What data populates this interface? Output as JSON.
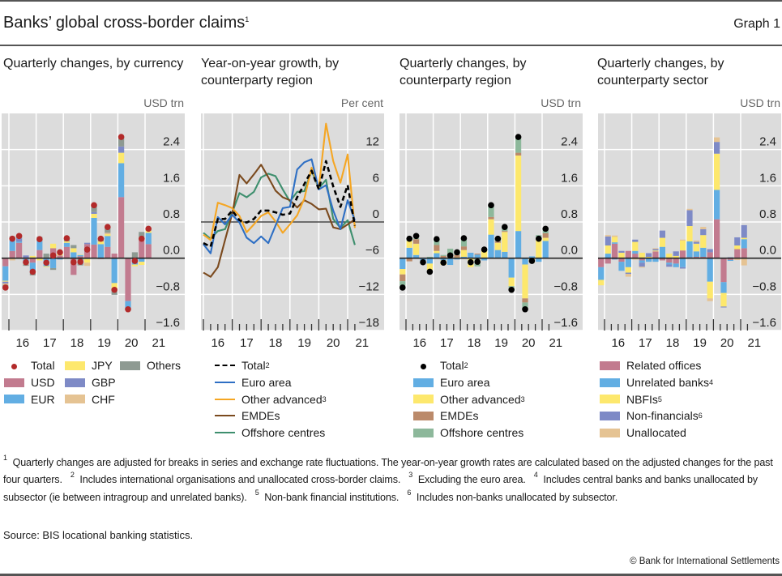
{
  "header": {
    "title": "Banks’ global cross-border claims",
    "title_sup": "1",
    "graph_label": "Graph 1"
  },
  "colors": {
    "plot_bg": "#dcdcdc",
    "grid": "#ffffff",
    "usd": "#c27b8f",
    "eur": "#62aee3",
    "jpy": "#fde86d",
    "gbp": "#7e8ac6",
    "chf": "#e5c393",
    "others": "#8e9a92",
    "total_dot": "#b22a2a",
    "total_black": "#000000",
    "euro_line": "#2e6fc4",
    "oadv_line": "#f5a623",
    "emde_line": "#7b4a1e",
    "offshore_line": "#3e8f6e",
    "emde_bar": "#bb8a6a",
    "offshore_bar": "#8db89b",
    "related": "#c27b8f",
    "unrelated": "#62aee3",
    "nbfi": "#fde86d",
    "nonfin": "#7e8ac6",
    "unalloc": "#e5c393"
  },
  "chart_data": [
    {
      "type": "bar",
      "stacked": true,
      "title": "Quarterly changes, by currency",
      "unit": "USD trn",
      "categories": [
        "2015Q4",
        "2016Q1",
        "2016Q2",
        "2016Q3",
        "2016Q4",
        "2017Q1",
        "2017Q2",
        "2017Q3",
        "2017Q4",
        "2018Q1",
        "2018Q2",
        "2018Q3",
        "2018Q4",
        "2019Q1",
        "2019Q2",
        "2019Q3",
        "2019Q4",
        "2020Q1",
        "2020Q2",
        "2020Q3",
        "2020Q4",
        "2021Q1"
      ],
      "x_tick_labels": [
        "16",
        "17",
        "18",
        "19",
        "20",
        "21"
      ],
      "ylim": [
        -1.6,
        3.2
      ],
      "y_ticks": [
        "2.4",
        "1.6",
        "0.8",
        "0.0",
        "−0.8",
        "−1.6"
      ],
      "y_tick_values": [
        2.4,
        1.6,
        0.8,
        0,
        -0.8,
        -1.6
      ],
      "grid": true,
      "legend_placement": "bottom",
      "series": [
        {
          "name": "USD",
          "color": "usd",
          "values": [
            -0.18,
            0.16,
            0.34,
            -0.02,
            -0.1,
            0.18,
            0,
            0.22,
            0.06,
            0.25,
            -0.37,
            0.04,
            0.31,
            0.3,
            -0.02,
            0.25,
            0.1,
            1.35,
            -0.95,
            0,
            0.46,
            0.31
          ]
        },
        {
          "name": "EUR",
          "color": "eur",
          "values": [
            -0.32,
            0.24,
            0.03,
            -0.1,
            -0.2,
            0.19,
            -0.18,
            -0.22,
            -0.03,
            0.09,
            0.13,
            0.03,
            -0.02,
            0.59,
            0.31,
            0.24,
            -0.55,
            0.75,
            -0.17,
            -0.14,
            -0.08,
            0.25
          ]
        },
        {
          "name": "JPY",
          "color": "jpy",
          "values": [
            -0.02,
            0.02,
            0,
            0,
            0.05,
            -0.05,
            -0.02,
            0.1,
            0.03,
            0.03,
            0.09,
            0.01,
            -0.08,
            0.09,
            0.06,
            0.04,
            -0.12,
            0.23,
            0,
            -0.04,
            -0.07,
            0.05
          ]
        },
        {
          "name": "GBP",
          "color": "gbp",
          "values": [
            -0.04,
            0.02,
            0.07,
            0.06,
            0,
            0,
            0,
            0,
            0,
            0,
            0,
            0,
            0.03,
            0.04,
            0,
            0,
            0,
            0.14,
            0,
            0,
            0,
            0
          ]
        },
        {
          "name": "CHF",
          "color": "chf",
          "values": [
            -0.03,
            -0.05,
            0,
            -0.02,
            0,
            0,
            0,
            0,
            0.04,
            0,
            0,
            0,
            -0.07,
            0,
            0,
            0.03,
            0,
            0,
            0,
            0,
            0,
            0
          ]
        },
        {
          "name": "Others",
          "color": "others",
          "values": [
            -0.04,
            0.04,
            0.05,
            -0.03,
            -0.08,
            0.1,
            0.1,
            -0.04,
            0,
            0.06,
            0.07,
            -0.16,
            0,
            0.15,
            0.05,
            0.13,
            -0.14,
            0.22,
            0,
            0.13,
            0.12,
            0.02
          ]
        }
      ],
      "total": {
        "name": "Total",
        "color": "total_dot",
        "values": [
          -0.65,
          0.43,
          0.49,
          -0.09,
          -0.3,
          0.42,
          -0.1,
          0.06,
          0.13,
          0.44,
          -0.09,
          -0.08,
          0.19,
          1.17,
          0.43,
          0.69,
          -0.7,
          2.68,
          -1.13,
          -0.06,
          0.43,
          0.65
        ]
      }
    },
    {
      "type": "line",
      "title": "Year-on-year growth, by counterparty region",
      "unit": "Per cent",
      "categories": [
        "2015Q4",
        "2016Q1",
        "2016Q2",
        "2016Q3",
        "2016Q4",
        "2017Q1",
        "2017Q2",
        "2017Q3",
        "2017Q4",
        "2018Q1",
        "2018Q2",
        "2018Q3",
        "2018Q4",
        "2019Q1",
        "2019Q2",
        "2019Q3",
        "2019Q4",
        "2020Q1",
        "2020Q2",
        "2020Q3",
        "2020Q4",
        "2021Q1"
      ],
      "x_tick_labels": [
        "16",
        "17",
        "18",
        "19",
        "20",
        "21"
      ],
      "ylim": [
        -18,
        18
      ],
      "y_ticks": [
        "12",
        "6",
        "0",
        "−6",
        "−12",
        "−18"
      ],
      "y_tick_values": [
        12,
        6,
        0,
        -6,
        -12,
        -18
      ],
      "grid": true,
      "legend_placement": "bottom",
      "series": [
        {
          "name": "Euro area",
          "color": "euro_line",
          "values": [
            -3.7,
            -5.2,
            0.8,
            -0.4,
            1.2,
            -0.1,
            -2.6,
            -3.5,
            -2.4,
            -3.5,
            -0.6,
            2.3,
            2.5,
            8.7,
            9.9,
            10.4,
            5.4,
            6.1,
            1.9,
            -1.2,
            3.6,
            0.3
          ]
        },
        {
          "name": "Other advanced",
          "color": "oadv_line",
          "values": [
            -2.1,
            -3.0,
            3.2,
            2.8,
            2.3,
            1.0,
            -1.7,
            -0.4,
            1.0,
            1.6,
            0.1,
            -1.8,
            -0.4,
            1.1,
            3.9,
            9.0,
            5.6,
            16.3,
            10.1,
            6.5,
            11.2,
            -1.0
          ]
        },
        {
          "name": "EMDEs",
          "color": "emde_line",
          "values": [
            -8.4,
            -9.1,
            -7.5,
            -3.0,
            1.4,
            7.8,
            6.4,
            7.9,
            9.5,
            7.4,
            5.2,
            4.1,
            3.6,
            2.4,
            3.6,
            3.0,
            2.1,
            2.2,
            -0.9,
            -1.2,
            -0.4,
            0.4
          ]
        },
        {
          "name": "Offshore centres",
          "color": "offshore_line",
          "values": [
            -1.8,
            -2.8,
            -1.5,
            -1.2,
            1.6,
            4.8,
            4.1,
            5.0,
            7.4,
            8.0,
            7.6,
            5.4,
            3.4,
            5.0,
            5.1,
            8.5,
            5.6,
            7.0,
            0.5,
            -1.0,
            0.3,
            -3.8
          ]
        }
      ],
      "total": {
        "name": "Total",
        "color": "total_black",
        "dashed": true,
        "values": [
          -3.5,
          -4.1,
          0.5,
          0.5,
          1.9,
          0.3,
          -0.1,
          0.5,
          1.9,
          1.9,
          1.6,
          1.2,
          1.4,
          4.1,
          6.3,
          8.5,
          5.4,
          10.1,
          5.9,
          2.5,
          6.1,
          -0.6
        ]
      }
    },
    {
      "type": "bar",
      "stacked": true,
      "title": "Quarterly changes, by counterparty region",
      "unit": "USD trn",
      "categories": [
        "2015Q4",
        "2016Q1",
        "2016Q2",
        "2016Q3",
        "2016Q4",
        "2017Q1",
        "2017Q2",
        "2017Q3",
        "2017Q4",
        "2018Q1",
        "2018Q2",
        "2018Q3",
        "2018Q4",
        "2019Q1",
        "2019Q2",
        "2019Q3",
        "2019Q4",
        "2020Q1",
        "2020Q2",
        "2020Q3",
        "2020Q4",
        "2021Q1"
      ],
      "x_tick_labels": [
        "16",
        "17",
        "18",
        "19",
        "20",
        "21"
      ],
      "ylim": [
        -1.6,
        3.2
      ],
      "y_ticks": [
        "2.4",
        "1.6",
        "0.8",
        "0.0",
        "−0.8",
        "−1.6"
      ],
      "y_tick_values": [
        2.4,
        1.6,
        0.8,
        0,
        -0.8,
        -1.6
      ],
      "grid": true,
      "legend_placement": "bottom",
      "series": [
        {
          "name": "Euro area",
          "color": "eur",
          "values": [
            -0.24,
            0.23,
            0.07,
            -0.06,
            -0.12,
            0.11,
            -0.05,
            -0.15,
            -0.03,
            0.03,
            0.12,
            0.08,
            -0.05,
            0.52,
            0.18,
            0.14,
            -0.43,
            0.6,
            -0.14,
            0.04,
            -0.08,
            0.38
          ]
        },
        {
          "name": "Other advanced",
          "color": "jpy",
          "values": [
            -0.12,
            0.15,
            0.25,
            -0.03,
            -0.14,
            0.05,
            -0.1,
            0,
            0.02,
            0.15,
            -0.2,
            0,
            0.17,
            0.34,
            0.16,
            0.44,
            -0.19,
            1.67,
            -0.75,
            -0.1,
            0.45,
            0.07
          ]
        },
        {
          "name": "EMDEs",
          "color": "emde_bar",
          "values": [
            -0.15,
            -0.07,
            0.1,
            0,
            0,
            0.13,
            0.05,
            0.1,
            0.05,
            0.08,
            0,
            0.02,
            0.02,
            0.05,
            0.03,
            0.02,
            0,
            0.06,
            -0.09,
            0,
            0,
            0.1
          ]
        },
        {
          "name": "Offshore centres",
          "color": "offshore_bar",
          "values": [
            -0.1,
            0.03,
            0.02,
            0,
            0.03,
            0.12,
            0.02,
            0.11,
            0.1,
            0.16,
            0,
            -0.18,
            0,
            0.26,
            0.06,
            0.09,
            -0.08,
            0.35,
            -0.15,
            0,
            0.06,
            0.1
          ]
        }
      ],
      "total": {
        "name": "Total",
        "color": "total_black",
        "values": [
          -0.65,
          0.43,
          0.49,
          -0.09,
          -0.3,
          0.42,
          -0.1,
          0.06,
          0.13,
          0.44,
          -0.09,
          -0.08,
          0.19,
          1.17,
          0.43,
          0.69,
          -0.7,
          2.68,
          -1.13,
          -0.06,
          0.43,
          0.65
        ]
      }
    },
    {
      "type": "bar",
      "stacked": true,
      "title": "Quarterly changes, by counterparty sector",
      "unit": "USD trn",
      "categories": [
        "2015Q4",
        "2016Q1",
        "2016Q2",
        "2016Q3",
        "2016Q4",
        "2017Q1",
        "2017Q2",
        "2017Q3",
        "2017Q4",
        "2018Q1",
        "2018Q2",
        "2018Q3",
        "2018Q4",
        "2019Q1",
        "2019Q2",
        "2019Q3",
        "2019Q4",
        "2020Q1",
        "2020Q2",
        "2020Q3",
        "2020Q4",
        "2021Q1"
      ],
      "x_tick_labels": [
        "16",
        "17",
        "18",
        "19",
        "20",
        "21"
      ],
      "ylim": [
        -1.6,
        3.2
      ],
      "y_ticks": [
        "2.4",
        "1.6",
        "0.8",
        "0.0",
        "−0.8",
        "−1.6"
      ],
      "y_tick_values": [
        2.4,
        1.6,
        0.8,
        0,
        -0.8,
        -1.6
      ],
      "grid": true,
      "legend_placement": "bottom",
      "series": [
        {
          "name": "Related offices",
          "color": "related",
          "values": [
            -0.2,
            -0.12,
            0.32,
            -0.08,
            0.16,
            0.1,
            -0.05,
            0,
            0.15,
            -0.05,
            -0.1,
            -0.12,
            0.17,
            0.02,
            0.03,
            0.03,
            0.13,
            0.86,
            -0.53,
            -0.04,
            0.2,
            0.22
          ]
        },
        {
          "name": "Unrelated banks",
          "color": "unrelated",
          "values": [
            -0.28,
            0.1,
            0.03,
            -0.2,
            -0.2,
            0.06,
            -0.05,
            -0.08,
            -0.08,
            0.25,
            -0.04,
            -0.08,
            -0.2,
            0.35,
            0.12,
            0.2,
            -0.52,
            0.65,
            -0.24,
            -0.02,
            0,
            0.2
          ]
        },
        {
          "name": "NBFIs",
          "color": "nbfi",
          "values": [
            -0.12,
            0.18,
            0.12,
            0.12,
            -0.12,
            0.2,
            0.12,
            0.03,
            0.02,
            0.2,
            0.1,
            0.05,
            0.22,
            0.34,
            0.17,
            0.28,
            -0.37,
            0.8,
            -0.3,
            0,
            0.08,
            0.03
          ]
        },
        {
          "name": "Non-financials",
          "color": "nonfin",
          "values": [
            0,
            0.2,
            -0.03,
            0.04,
            -0.03,
            0.05,
            -0.09,
            0.08,
            0.03,
            0.16,
            -0.05,
            0.1,
            -0.03,
            0.35,
            0.04,
            0.13,
            0.07,
            0.26,
            -0.02,
            0.02,
            0.18,
            0.28
          ]
        },
        {
          "name": "Unallocated",
          "color": "unalloc",
          "values": [
            0,
            0.03,
            0.03,
            0,
            -0.06,
            -0.03,
            -0.02,
            0,
            0.02,
            0,
            0,
            0,
            0.02,
            0.03,
            0.03,
            0.05,
            -0.06,
            0.1,
            0,
            0,
            -0.04,
            -0.16
          ]
        }
      ]
    }
  ],
  "legends": [
    {
      "items": [
        {
          "label": "Total",
          "sup": ""
        },
        {
          "label": "JPY",
          "sup": ""
        },
        {
          "label": "Others",
          "sup": ""
        },
        {
          "label": "USD",
          "sup": ""
        },
        {
          "label": "GBP",
          "sup": ""
        },
        {
          "label": "EUR",
          "sup": ""
        },
        {
          "label": "CHF",
          "sup": ""
        }
      ]
    },
    {
      "items": [
        {
          "label": "Total",
          "sup": "2"
        },
        {
          "label": "Euro area",
          "sup": ""
        },
        {
          "label": "Other advanced",
          "sup": "3"
        },
        {
          "label": "EMDEs",
          "sup": ""
        },
        {
          "label": "Offshore centres",
          "sup": ""
        }
      ]
    },
    {
      "items": [
        {
          "label": "Total",
          "sup": "2"
        },
        {
          "label": "Euro area",
          "sup": ""
        },
        {
          "label": "Other advanced",
          "sup": "3"
        },
        {
          "label": "EMDEs",
          "sup": ""
        },
        {
          "label": "Offshore centres",
          "sup": ""
        }
      ]
    },
    {
      "items": [
        {
          "label": "Related offices",
          "sup": ""
        },
        {
          "label": "Unrelated banks",
          "sup": "4"
        },
        {
          "label": "NBFIs",
          "sup": "5"
        },
        {
          "label": "Non-financials",
          "sup": "6"
        },
        {
          "label": "Unallocated",
          "sup": ""
        }
      ]
    }
  ],
  "footnotes": [
    {
      "num": "1",
      "text": "Quarterly changes are adjusted for breaks in series and exchange rate fluctuations. The year-on-year growth rates are calculated based on the adjusted changes for the past four quarters."
    },
    {
      "num": "2",
      "text": "Includes international organisations and unallocated cross-border claims."
    },
    {
      "num": "3",
      "text": "Excluding the euro area."
    },
    {
      "num": "4",
      "text": "Includes central banks and banks unallocated by subsector (ie between intragroup and unrelated banks)."
    },
    {
      "num": "5",
      "text": "Non-bank financial institutions."
    },
    {
      "num": "6",
      "text": "Includes non-banks unallocated by subsector."
    }
  ],
  "source": "Source: BIS locational banking statistics.",
  "copyright": "© Bank for International Settlements"
}
